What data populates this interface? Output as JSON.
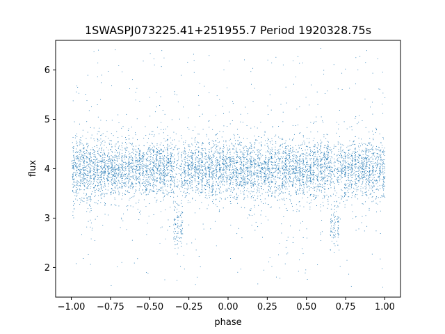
{
  "chart_data": {
    "type": "scatter",
    "title": "1SWASPJ073225.41+251955.7 Period 1920328.75s",
    "xlabel": "phase",
    "ylabel": "flux",
    "xlim": [
      -1.1,
      1.1
    ],
    "ylim": [
      1.4,
      6.6
    ],
    "xticks": [
      -1.0,
      -0.75,
      -0.5,
      -0.25,
      0.0,
      0.25,
      0.5,
      0.75,
      1.0
    ],
    "xtick_labels": [
      "−1.00",
      "−0.75",
      "−0.50",
      "−0.25",
      "0.00",
      "0.25",
      "0.50",
      "0.75",
      "1.00"
    ],
    "yticks": [
      2,
      3,
      4,
      5,
      6
    ],
    "ytick_labels": [
      "2",
      "3",
      "4",
      "5",
      "6"
    ],
    "grid": false,
    "legend": "none",
    "marker_color": "#1f77b4",
    "series": [
      {
        "x_range": [
          -1.0,
          1.0
        ],
        "typical_flux": 4.0,
        "flux_spread": 0.3,
        "flux_range": [
          1.6,
          6.45
        ],
        "dip_phases": [
          -0.32,
          0.68
        ],
        "dip_flux": 2.8
      }
    ]
  }
}
